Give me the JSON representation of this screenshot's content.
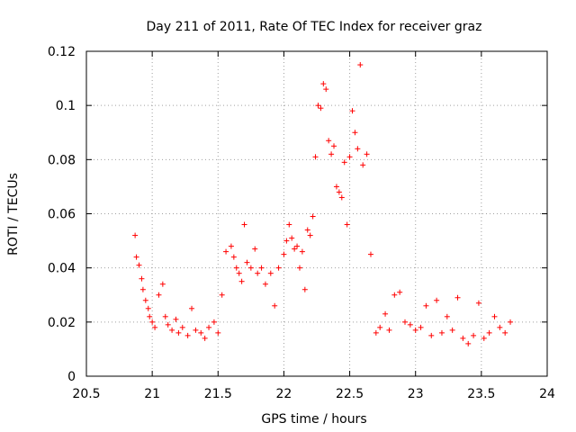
{
  "chart_data": {
    "type": "scatter",
    "title": "Day 211 of 2011, Rate Of TEC Index for receiver graz",
    "xlabel": "GPS time / hours",
    "ylabel": "ROTI / TECUs",
    "xlim": [
      20.5,
      24
    ],
    "ylim": [
      0,
      0.12
    ],
    "xticks": [
      "20.5",
      "21",
      "21.5",
      "22",
      "22.5",
      "23",
      "23.5",
      "24"
    ],
    "xtick_values": [
      20.5,
      21,
      21.5,
      22,
      22.5,
      23,
      23.5,
      24
    ],
    "yticks": [
      "0",
      "0.02",
      "0.04",
      "0.06",
      "0.08",
      "0.1",
      "0.12"
    ],
    "ytick_values": [
      0,
      0.02,
      0.04,
      0.06,
      0.08,
      0.1,
      0.12
    ],
    "grid": true,
    "marker": "+",
    "color": "#ff0000",
    "series": [
      {
        "name": "ROTI",
        "x": [
          20.87,
          20.88,
          20.9,
          20.92,
          20.93,
          20.95,
          20.97,
          20.98,
          21.0,
          21.02,
          21.05,
          21.08,
          21.1,
          21.12,
          21.15,
          21.18,
          21.2,
          21.23,
          21.27,
          21.3,
          21.33,
          21.37,
          21.4,
          21.43,
          21.47,
          21.5,
          21.53,
          21.56,
          21.6,
          21.62,
          21.64,
          21.66,
          21.68,
          21.7,
          21.72,
          21.75,
          21.78,
          21.8,
          21.83,
          21.86,
          21.9,
          21.93,
          21.96,
          22.0,
          22.02,
          22.04,
          22.06,
          22.08,
          22.1,
          22.12,
          22.14,
          22.16,
          22.18,
          22.2,
          22.22,
          22.24,
          22.26,
          22.28,
          22.3,
          22.32,
          22.34,
          22.36,
          22.38,
          22.4,
          22.42,
          22.44,
          22.46,
          22.48,
          22.5,
          22.52,
          22.54,
          22.56,
          22.58,
          22.6,
          22.63,
          22.66,
          22.7,
          22.73,
          22.77,
          22.8,
          22.84,
          22.88,
          22.92,
          22.96,
          23.0,
          23.04,
          23.08,
          23.12,
          23.16,
          23.2,
          23.24,
          23.28,
          23.32,
          23.36,
          23.4,
          23.44,
          23.48,
          23.52,
          23.56,
          23.6,
          23.64,
          23.68,
          23.72
        ],
        "y": [
          0.052,
          0.044,
          0.041,
          0.036,
          0.032,
          0.028,
          0.025,
          0.022,
          0.02,
          0.018,
          0.03,
          0.034,
          0.022,
          0.019,
          0.017,
          0.021,
          0.016,
          0.018,
          0.015,
          0.025,
          0.017,
          0.016,
          0.014,
          0.018,
          0.02,
          0.016,
          0.03,
          0.046,
          0.048,
          0.044,
          0.04,
          0.038,
          0.035,
          0.056,
          0.042,
          0.04,
          0.047,
          0.038,
          0.04,
          0.034,
          0.038,
          0.026,
          0.04,
          0.045,
          0.05,
          0.056,
          0.051,
          0.047,
          0.048,
          0.04,
          0.046,
          0.032,
          0.054,
          0.052,
          0.059,
          0.081,
          0.1,
          0.099,
          0.108,
          0.106,
          0.087,
          0.082,
          0.085,
          0.07,
          0.068,
          0.066,
          0.079,
          0.056,
          0.081,
          0.098,
          0.09,
          0.084,
          0.115,
          0.078,
          0.082,
          0.045,
          0.016,
          0.018,
          0.023,
          0.017,
          0.03,
          0.031,
          0.02,
          0.019,
          0.017,
          0.018,
          0.026,
          0.015,
          0.028,
          0.016,
          0.022,
          0.017,
          0.029,
          0.014,
          0.012,
          0.015,
          0.027,
          0.014,
          0.016,
          0.022,
          0.018,
          0.016,
          0.02
        ]
      }
    ]
  }
}
